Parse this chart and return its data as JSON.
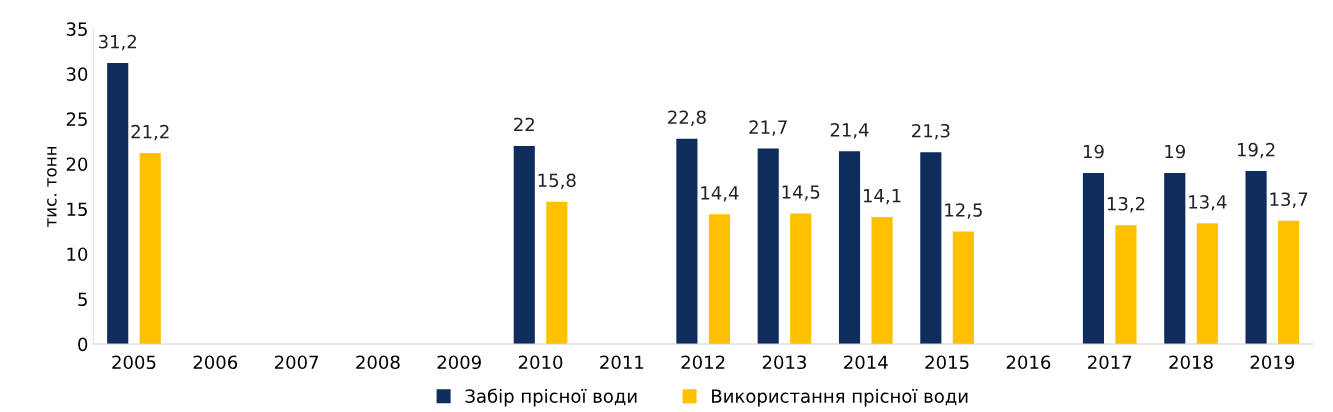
{
  "chart_data": {
    "type": "bar",
    "ylabel": "тис. тонн",
    "categories": [
      "2005",
      "2006",
      "2007",
      "2008",
      "2009",
      "2010",
      "2011",
      "2012",
      "2013",
      "2014",
      "2015",
      "2016",
      "2017",
      "2018",
      "2019"
    ],
    "series": [
      {
        "name": "Забір прісної води",
        "color": "#0e2d5c",
        "values": [
          31.2,
          null,
          null,
          null,
          null,
          22,
          null,
          22.8,
          21.7,
          21.4,
          21.3,
          null,
          19,
          19,
          19.2
        ],
        "value_labels": [
          "31,2",
          null,
          null,
          null,
          null,
          "22",
          null,
          "22,8",
          "21,7",
          "21,4",
          "21,3",
          null,
          "19",
          "19",
          "19,2"
        ]
      },
      {
        "name": "Використання прісної води",
        "color": "#ffc000",
        "values": [
          21.2,
          null,
          null,
          null,
          null,
          15.8,
          null,
          14.4,
          14.5,
          14.1,
          12.5,
          null,
          13.2,
          13.4,
          13.7
        ],
        "value_labels": [
          "21,2",
          null,
          null,
          null,
          null,
          "15,8",
          null,
          "14,4",
          "14,5",
          "14,1",
          "12,5",
          null,
          "13,2",
          "13,4",
          "13,7"
        ]
      }
    ],
    "ylim": [
      0,
      35
    ],
    "yticks": [
      0,
      5,
      10,
      15,
      20,
      25,
      30,
      35
    ],
    "grid": false,
    "legend": "bottom"
  }
}
